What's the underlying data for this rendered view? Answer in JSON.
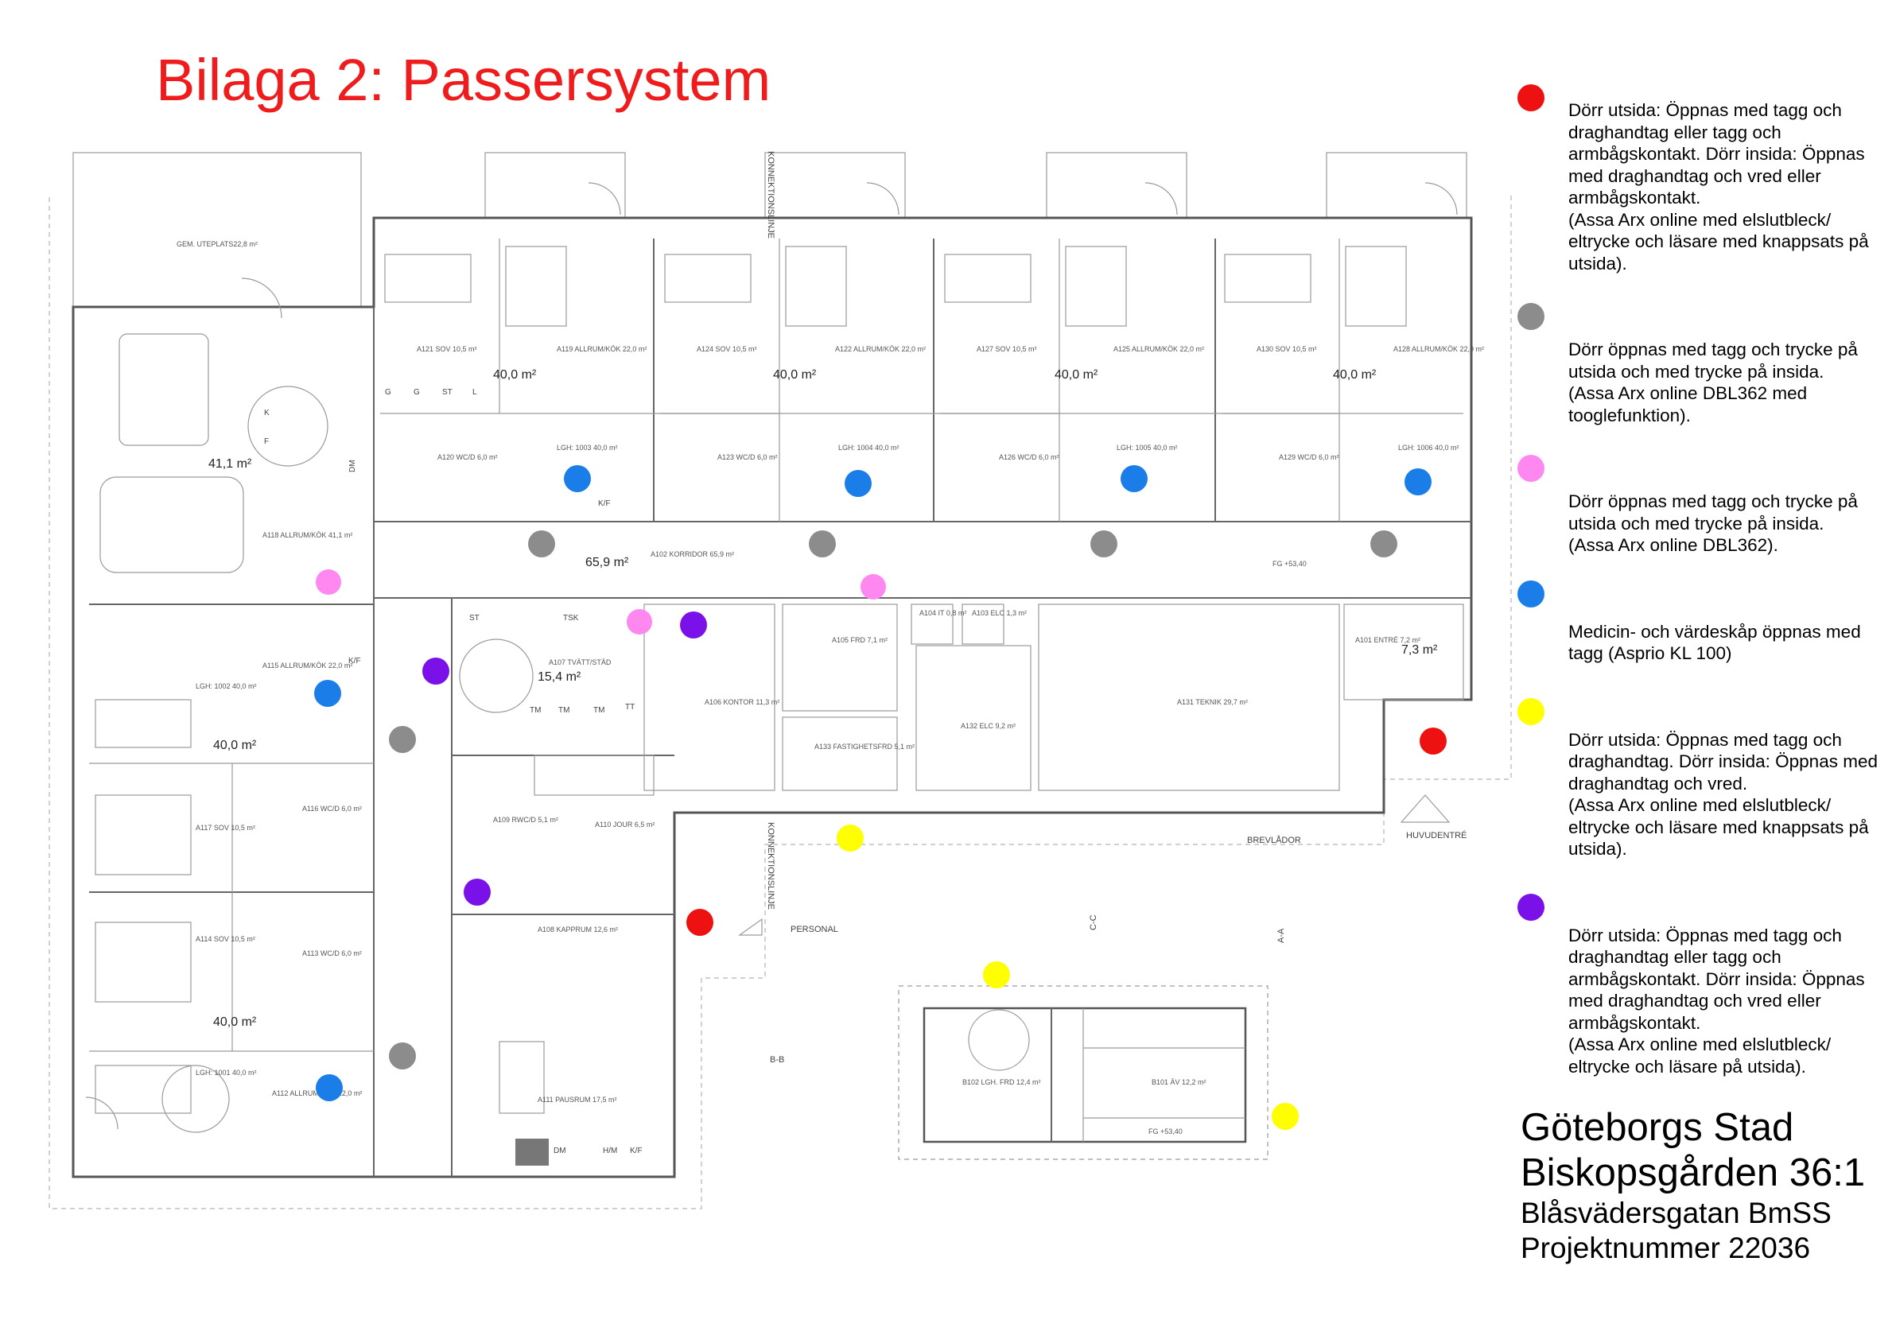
{
  "title": "Bilaga 2: Passersystem",
  "colors": {
    "title": "#ee1c1c",
    "red": "#ee1111",
    "gray": "#8c8c8c",
    "pink": "#ff88f0",
    "blue": "#1a7de8",
    "yellow": "#ffff00",
    "purple": "#7a11e8"
  },
  "legend": [
    {
      "color": "red",
      "text": "Dörr utsida: Öppnas med tagg och draghandtag eller tagg och armbågskontakt. Dörr insida: Öppnas med draghandtag och vred eller armbågskontakt.\n(Assa Arx online med elslutbleck/ eltrycke och läsare med knappsats på utsida)."
    },
    {
      "color": "gray",
      "text": "Dörr öppnas med tagg och trycke på utsida och med trycke på insida.\n(Assa Arx online DBL362 med tooglefunktion)."
    },
    {
      "color": "pink",
      "text": "Dörr öppnas med tagg och trycke på utsida och med trycke på insida.\n(Assa Arx online DBL362)."
    },
    {
      "color": "blue",
      "text": "Medicin- och värdeskåp öppnas med tagg (Asprio KL 100)"
    },
    {
      "color": "yellow",
      "text": "Dörr utsida: Öppnas med tagg och draghandtag. Dörr insida: Öppnas med draghandtag och vred.\n(Assa Arx online med elslutbleck/ eltrycke och läsare med knappsats på utsida)."
    },
    {
      "color": "purple",
      "text": "Dörr utsida: Öppnas med tagg och draghandtag eller tagg och armbågskontakt. Dörr insida: Öppnas med draghandtag och vred eller armbågskontakt.\n(Assa Arx online med elslutbleck/ eltrycke och läsare på utsida)."
    }
  ],
  "project": {
    "line1": "Göteborgs Stad",
    "line2": "Biskopsgården 36:1",
    "line3": "Blåsvädersgatan BmSS",
    "line4": "Projektnummer 22036"
  },
  "plan": {
    "areas": [
      "41,1 m²",
      "40,0 m²",
      "40,0 m²",
      "40,0 m²",
      "40,0 m²",
      "65,9 m²",
      "15,4 m²",
      "40,0 m²",
      "40,0 m²",
      "7,3 m²"
    ],
    "rooms": [
      "GEM. UTEPLATS22,8 m²",
      "A118 ALLRUM/KÖK 41,1 m²",
      "A121 SOV 10,5 m²",
      "A119 ALLRUM/KÖK 22,0 m²",
      "A124 SOV 10,5 m²",
      "A122 ALLRUM/KÖK 22,0 m²",
      "A127 SOV 10,5 m²",
      "A125 ALLRUM/KÖK 22,0 m²",
      "A130 SOV 10,5 m²",
      "A128 ALLRUM/KÖK 22,0 m²",
      "A120 WC/D 6,0 m²",
      "A123 WC/D 6,0 m²",
      "A126 WC/D 6,0 m²",
      "A129 WC/D 6,0 m²",
      "LGH: 1003 40,0 m²",
      "LGH: 1004 40,0 m²",
      "LGH: 1005 40,0 m²",
      "LGH: 1006 40,0 m²",
      "A102 KORRIDOR 65,9 m²",
      "FG +53,40",
      "A107 TVÄTT/STÄD",
      "A106 KONTOR 11,3 m²",
      "A105 FRD 7,1 m²",
      "A104 IT 0,8 m²",
      "A103 ELC 1,3 m²",
      "A133 FASTIGHETSFRD 5,1 m²",
      "A132 ELC 9,2 m²",
      "A131 TEKNIK 29,7 m²",
      "A101 ENTRÉ 7,2 m²",
      "A115 ALLRUM/KÖK 22,0 m²",
      "LGH: 1002 40,0 m²",
      "A117 SOV 10,5 m²",
      "A116 WC/D 6,0 m²",
      "A109 RWC/D 5,1 m²",
      "A110 JOUR 6,5 m²",
      "A114 SOV 10,5 m²",
      "A113 WC/D 6,0 m²",
      "A108 KAPPRUM 12,6 m²",
      "LGH: 1001 40,0 m²",
      "A112 ALLRUM/KÖK 22,0 m²",
      "A111 PAUSRUM 17,5 m²",
      "B102 LGH. FRD 12,4 m²",
      "B101 ÄV 12,2 m²",
      "FG +53,40"
    ],
    "labels": [
      "KONNEKTIONSLINJE",
      "KONNEKTIONSLINJE",
      "BREVLÅDOR",
      "HUVUDENTRÉ",
      "PERSONAL",
      "C-C",
      "A-A",
      "B-B"
    ],
    "fixtures": [
      "K",
      "F",
      "DM",
      "G",
      "G",
      "ST",
      "L",
      "K/F",
      "ST",
      "TSK",
      "TM",
      "TM",
      "TM",
      "TT",
      "K/F",
      "DM",
      "H/M",
      "K/F"
    ]
  }
}
